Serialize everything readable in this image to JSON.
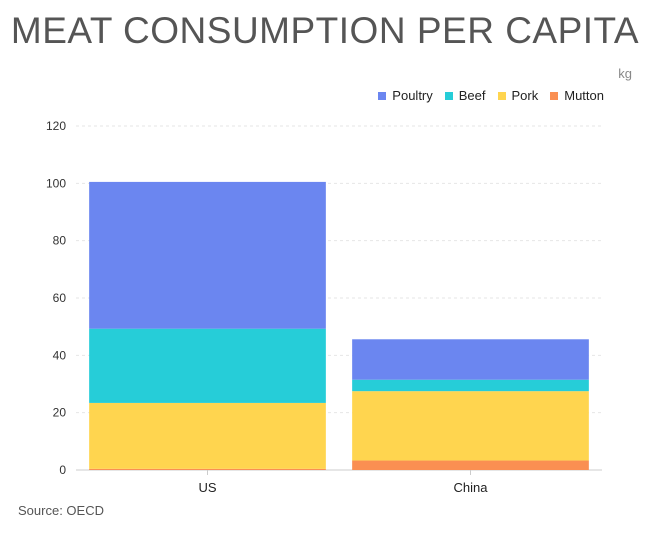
{
  "chart_data": {
    "type": "bar",
    "stacked": true,
    "title": "MEAT CONSUMPTION PER CAPITA",
    "unit": "kg",
    "source": "Source: OECD",
    "categories": [
      "US",
      "China"
    ],
    "ylim": [
      0,
      120
    ],
    "yticks": [
      0,
      20,
      40,
      60,
      80,
      100,
      120
    ],
    "grid": true,
    "legend_position": "top-right",
    "series": [
      {
        "name": "Mutton",
        "color": "#fa8f52",
        "values": [
          0.4,
          3.3
        ]
      },
      {
        "name": "Pork",
        "color": "#ffd54f",
        "values": [
          23.0,
          24.2
        ]
      },
      {
        "name": "Beef",
        "color": "#26cdd8",
        "values": [
          25.9,
          4.0
        ]
      },
      {
        "name": "Poultry",
        "color": "#6b86f0",
        "values": [
          51.2,
          14.1
        ]
      }
    ],
    "legend_order": [
      "Poultry",
      "Beef",
      "Pork",
      "Mutton"
    ]
  }
}
